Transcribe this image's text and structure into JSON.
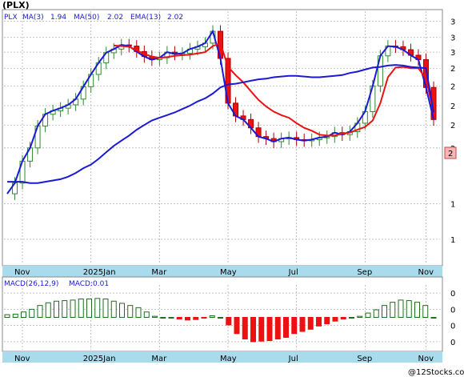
{
  "title": "(PLX)",
  "indicators": {
    "symbol": "PLX",
    "ma3_label": "MA(3)",
    "ma3_value": "1.94",
    "ma50_label": "MA(50)",
    "ma50_value": "2.02",
    "ema13_label": "EMA(13)",
    "ema13_value": "2.02"
  },
  "macd_header": {
    "label": "MACD(26,12,9)",
    "value_label": "MACD:0.01"
  },
  "last_price_tag": "2",
  "watermark": "@12Stocks.com",
  "colors": {
    "background": "#ffffff",
    "grid": "#b0b0b0",
    "axis_band": "#a8dcec",
    "up_fill": "#ffffff",
    "up_edge": "#2e8b2e",
    "down_fill": "#ee1111",
    "down_edge": "#aa0000",
    "ma3": "#1a1ad6",
    "ma50": "#1a1ad6",
    "ema13": "#ee1111",
    "macd_pos": "#1e6e1e",
    "macd_neg": "#ee1111",
    "price_tag_bg": "#f4b6b6"
  },
  "chart_data": [
    {
      "type": "candlestick",
      "title": "(PLX)",
      "x_labels": [
        "Nov",
        "2025Jan",
        "Mar",
        "May",
        "Jul",
        "Sep",
        "Nov"
      ],
      "y_axis_scale": "log",
      "y_tick_labels": [
        "3",
        "3",
        "3",
        "2",
        "2",
        "2",
        "2",
        "2",
        "1",
        "1"
      ],
      "y_range": [
        0.85,
        3.6
      ],
      "grid": true,
      "series": [
        {
          "name": "MA(3)",
          "values": [
            1.27,
            1.35,
            1.53,
            1.65,
            1.87,
            2.0,
            2.04,
            2.07,
            2.11,
            2.18,
            2.34,
            2.51,
            2.68,
            2.84,
            2.9,
            2.97,
            2.95,
            2.86,
            2.78,
            2.73,
            2.76,
            2.85,
            2.82,
            2.83,
            2.9,
            2.94,
            3.0,
            3.21,
            2.75,
            2.13,
            1.98,
            1.94,
            1.85,
            1.76,
            1.74,
            1.71,
            1.74,
            1.75,
            1.73,
            1.72,
            1.73,
            1.75,
            1.76,
            1.8,
            1.78,
            1.81,
            1.9,
            2.03,
            2.35,
            2.79,
            2.95,
            2.94,
            2.89,
            2.8,
            2.73,
            2.33,
            1.94
          ]
        },
        {
          "name": "EMA(13)",
          "values": [
            null,
            null,
            null,
            null,
            null,
            null,
            null,
            null,
            null,
            null,
            null,
            null,
            null,
            null,
            2.96,
            2.95,
            2.94,
            2.88,
            2.82,
            2.78,
            2.76,
            2.77,
            2.79,
            2.8,
            2.81,
            2.83,
            2.85,
            2.95,
            3.0,
            2.62,
            2.5,
            2.4,
            2.28,
            2.17,
            2.09,
            2.03,
            1.99,
            1.96,
            1.9,
            1.85,
            1.82,
            1.78,
            1.77,
            1.77,
            1.79,
            1.8,
            1.83,
            1.86,
            1.93,
            2.13,
            2.47,
            2.61,
            2.62,
            2.6,
            2.6,
            2.45,
            2.02
          ]
        },
        {
          "name": "MA(50)",
          "values": [
            1.36,
            1.36,
            1.36,
            1.35,
            1.35,
            1.36,
            1.37,
            1.38,
            1.4,
            1.43,
            1.47,
            1.5,
            1.55,
            1.61,
            1.67,
            1.72,
            1.77,
            1.83,
            1.88,
            1.93,
            1.96,
            1.99,
            2.02,
            2.06,
            2.1,
            2.15,
            2.19,
            2.25,
            2.33,
            2.37,
            2.38,
            2.4,
            2.42,
            2.44,
            2.45,
            2.47,
            2.48,
            2.49,
            2.49,
            2.48,
            2.47,
            2.47,
            2.48,
            2.49,
            2.5,
            2.53,
            2.55,
            2.58,
            2.61,
            2.62,
            2.64,
            2.65,
            2.64,
            2.62,
            2.61,
            2.6,
            2.02
          ]
        }
      ]
    },
    {
      "type": "bar",
      "title": "MACD(26,12,9)",
      "y_tick_labels": [
        "0",
        "0",
        "0",
        "0"
      ],
      "y_range": [
        -0.06,
        0.06
      ],
      "values": [
        0.005,
        0.006,
        0.01,
        0.015,
        0.022,
        0.027,
        0.03,
        0.031,
        0.032,
        0.034,
        0.034,
        0.035,
        0.034,
        0.03,
        0.026,
        0.022,
        0.018,
        0.01,
        0.002,
        0.0,
        0.0,
        -0.003,
        -0.005,
        -0.004,
        -0.001,
        0.003,
        0.0,
        -0.014,
        -0.03,
        -0.04,
        -0.045,
        -0.044,
        -0.043,
        -0.04,
        -0.037,
        -0.03,
        -0.026,
        -0.022,
        -0.016,
        -0.012,
        -0.007,
        -0.003,
        0.0,
        0.002,
        0.008,
        0.014,
        0.022,
        0.028,
        0.032,
        0.031,
        0.028,
        0.022,
        0.0
      ],
      "x_labels": [
        "Nov",
        "2025Jan",
        "Mar",
        "May",
        "Jul",
        "Sep",
        "Nov"
      ]
    }
  ]
}
